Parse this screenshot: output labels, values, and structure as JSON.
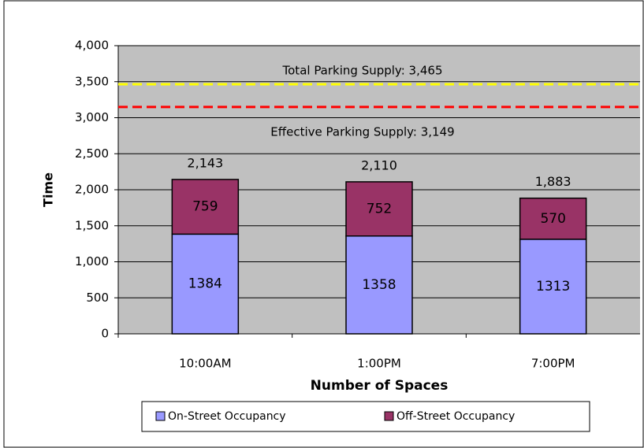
{
  "chart_data": {
    "type": "bar",
    "stacked": true,
    "x_label": "Number of Spaces",
    "y_label": "Time",
    "categories": [
      "10:00AM",
      "1:00PM",
      "7:00PM"
    ],
    "series": [
      {
        "name": "On-Street Occupancy",
        "color": "#9999ff",
        "values": [
          1384,
          1358,
          1313
        ]
      },
      {
        "name": "Off-Street Occupancy",
        "color": "#993366",
        "values": [
          759,
          752,
          570
        ]
      }
    ],
    "totals": [
      2143,
      2110,
      1883
    ],
    "total_labels": [
      "2,143",
      "2,110",
      "1,883"
    ],
    "reference_lines": [
      {
        "label": "Total Parking Supply:  3,465",
        "value": 3465,
        "color": "#ffff00"
      },
      {
        "label": "Effective Parking Supply:  3,149",
        "value": 3149,
        "color": "#ff0000"
      }
    ],
    "ylim": [
      0,
      4000
    ],
    "yticks": [
      0,
      500,
      {
        "value": 1000,
        "label": "1,000"
      },
      {
        "value": 1500,
        "label": "1,500"
      },
      {
        "value": 2000,
        "label": "2,000"
      },
      {
        "value": 2500,
        "label": "2,500"
      },
      {
        "value": 3000,
        "label": "3,000"
      },
      {
        "value": 3500,
        "label": "3,500"
      },
      {
        "value": 4000,
        "label": "4,000"
      }
    ],
    "grid": true,
    "legend": "bottom"
  }
}
